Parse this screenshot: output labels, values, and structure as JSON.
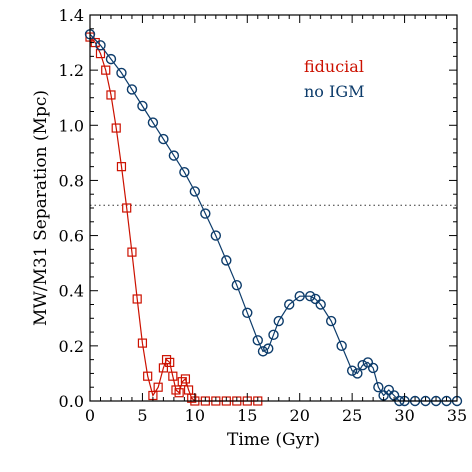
{
  "chart_data": {
    "type": "scatter",
    "xlabel": "Time (Gyr)",
    "ylabel": "MW/M31 Separation (Mpc)",
    "xlim": [
      0,
      35
    ],
    "ylim": [
      0,
      1.4
    ],
    "x_ticks": [
      {
        "value": 0,
        "label": "0"
      },
      {
        "value": 5,
        "label": "5"
      },
      {
        "value": 10,
        "label": "10"
      },
      {
        "value": 15,
        "label": "15"
      },
      {
        "value": 20,
        "label": "20"
      },
      {
        "value": 25,
        "label": "25"
      },
      {
        "value": 30,
        "label": "30"
      },
      {
        "value": 35,
        "label": "35"
      }
    ],
    "y_ticks": [
      {
        "value": 0.0,
        "label": "0.0"
      },
      {
        "value": 0.2,
        "label": "0.2"
      },
      {
        "value": 0.4,
        "label": "0.4"
      },
      {
        "value": 0.6,
        "label": "0.6"
      },
      {
        "value": 0.8,
        "label": "0.8"
      },
      {
        "value": 1.0,
        "label": "1.0"
      },
      {
        "value": 1.2,
        "label": "1.2"
      },
      {
        "value": 1.4,
        "label": "1.4"
      }
    ],
    "reference_line": {
      "y": 0.71,
      "style": "dotted"
    },
    "legend_placement": "top-right",
    "series": [
      {
        "name": "fiducial",
        "color": "#cc1100",
        "marker": "square",
        "x": [
          0,
          0.5,
          1.0,
          1.5,
          2.0,
          2.5,
          3.0,
          3.5,
          4.0,
          4.5,
          5.0,
          5.5,
          6.0,
          6.5,
          7.0,
          7.3,
          7.6,
          7.9,
          8.2,
          8.5,
          8.8,
          9.1,
          9.4,
          9.7,
          10.0,
          11,
          12,
          13,
          14,
          15,
          16
        ],
        "y": [
          1.32,
          1.3,
          1.26,
          1.2,
          1.11,
          0.99,
          0.85,
          0.7,
          0.54,
          0.37,
          0.21,
          0.09,
          0.02,
          0.05,
          0.12,
          0.15,
          0.14,
          0.09,
          0.04,
          0.03,
          0.07,
          0.08,
          0.04,
          0.01,
          0.0,
          0.0,
          0.0,
          0.0,
          0.0,
          0.0,
          0.0
        ]
      },
      {
        "name": "no IGM",
        "color": "#0d3c6b",
        "marker": "circle",
        "x": [
          0,
          1,
          2,
          3,
          4,
          5,
          6,
          7,
          8,
          9,
          10,
          11,
          12,
          13,
          14,
          15,
          16,
          16.5,
          17,
          17.5,
          18,
          19,
          20,
          21,
          21.5,
          22,
          23,
          24,
          25,
          25.5,
          26,
          26.5,
          27,
          27.5,
          28,
          28.5,
          29,
          29.5,
          30,
          31,
          32,
          33,
          34,
          35
        ],
        "y": [
          1.33,
          1.29,
          1.24,
          1.19,
          1.13,
          1.07,
          1.01,
          0.95,
          0.89,
          0.83,
          0.76,
          0.68,
          0.6,
          0.51,
          0.42,
          0.32,
          0.22,
          0.18,
          0.19,
          0.24,
          0.29,
          0.35,
          0.38,
          0.38,
          0.37,
          0.35,
          0.29,
          0.2,
          0.11,
          0.1,
          0.13,
          0.14,
          0.12,
          0.05,
          0.02,
          0.04,
          0.02,
          0.0,
          0.0,
          0.0,
          0.0,
          0.0,
          0.0,
          0.0
        ]
      }
    ]
  }
}
